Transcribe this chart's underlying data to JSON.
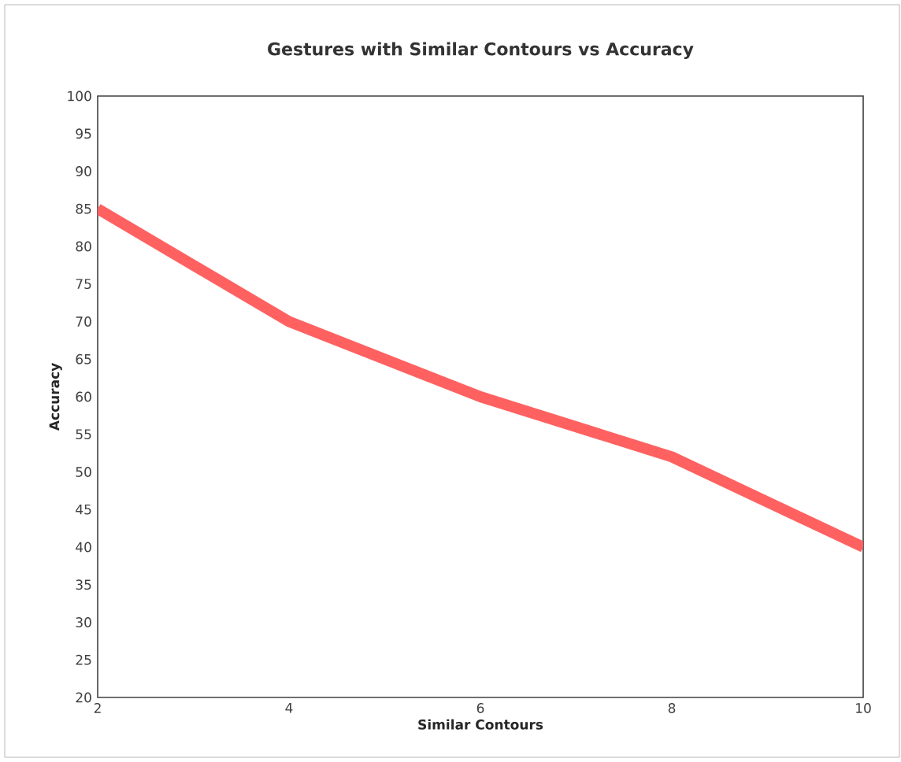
{
  "chart_data": {
    "type": "line",
    "title": "Gestures with Similar Contours vs Accuracy",
    "xlabel": "Similar Contours",
    "ylabel": "Accuracy",
    "x": [
      2,
      4,
      6,
      8,
      10
    ],
    "series": [
      {
        "color": "#ff6161",
        "values": [
          85,
          70,
          60,
          52,
          40
        ]
      }
    ],
    "xlim": [
      2,
      10
    ],
    "xticks": [
      2,
      4,
      6,
      8,
      10
    ],
    "ylim": [
      20,
      100
    ],
    "yticks": [
      20,
      25,
      30,
      35,
      40,
      45,
      50,
      55,
      60,
      65,
      70,
      75,
      80,
      85,
      90,
      95,
      100
    ],
    "grid": false,
    "marker": "none",
    "line_style": "solid"
  }
}
